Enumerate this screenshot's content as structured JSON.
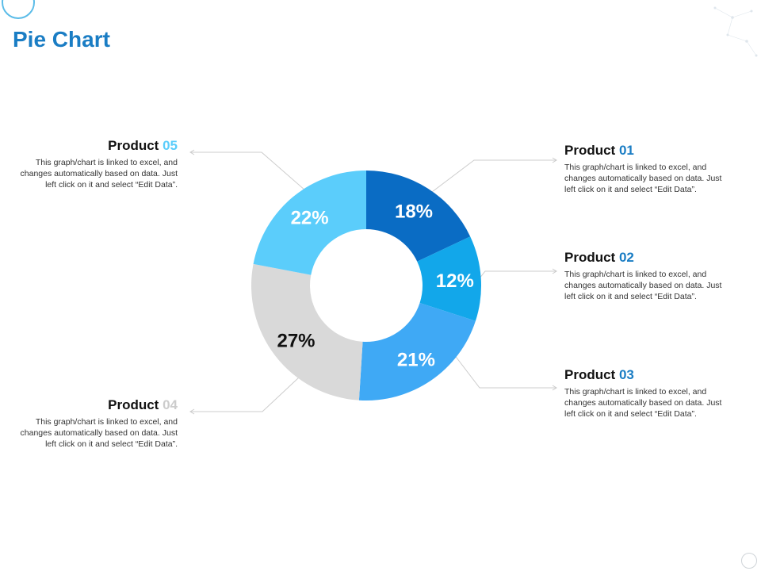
{
  "page": {
    "title": "Pie Chart"
  },
  "colors": {
    "title": "#1a7dc4",
    "product_01": "#0a6cc4",
    "product_02": "#12a7ea",
    "product_03": "#3fa9f5",
    "product_04": "#d9d9d9",
    "product_05": "#5bcdfb",
    "number_blue": "#1a7dc4",
    "number_grey": "#cccccc",
    "connector": "#cccccc"
  },
  "legend": [
    {
      "name": "Product",
      "number": "01",
      "number_color": "#1a7dc4",
      "description": "This graph/chart is linked to excel, and changes automatically based on data. Just left click on it and select “Edit Data”."
    },
    {
      "name": "Product",
      "number": "02",
      "number_color": "#1a7dc4",
      "description": "This graph/chart is linked to excel, and changes automatically based on data. Just left click on it and select “Edit Data”."
    },
    {
      "name": "Product",
      "number": "03",
      "number_color": "#1a7dc4",
      "description": "This graph/chart is linked to excel, and changes automatically based on data. Just left click on it and select “Edit Data”."
    },
    {
      "name": "Product",
      "number": "04",
      "number_color": "#cccccc",
      "description": "This graph/chart is linked to excel, and changes automatically based on data. Just left click on it and select “Edit Data”."
    },
    {
      "name": "Product",
      "number": "05",
      "number_color": "#5bcdfb",
      "description": "This graph/chart is linked to excel, and changes automatically based on data. Just left click on it and select “Edit Data”."
    }
  ],
  "chart_data": {
    "type": "pie",
    "variant": "donut",
    "title": "Pie Chart",
    "categories": [
      "Product 01",
      "Product 02",
      "Product 03",
      "Product 04",
      "Product 05"
    ],
    "values": [
      18,
      12,
      21,
      27,
      22
    ],
    "labels": [
      "18%",
      "12%",
      "21%",
      "27%",
      "22%"
    ],
    "label_colors": [
      "#ffffff",
      "#ffffff",
      "#ffffff",
      "#111111",
      "#ffffff"
    ],
    "colors": [
      "#0a6cc4",
      "#12a7ea",
      "#3fa9f5",
      "#d9d9d9",
      "#5bcdfb"
    ],
    "start": "top",
    "direction": "clockwise"
  }
}
